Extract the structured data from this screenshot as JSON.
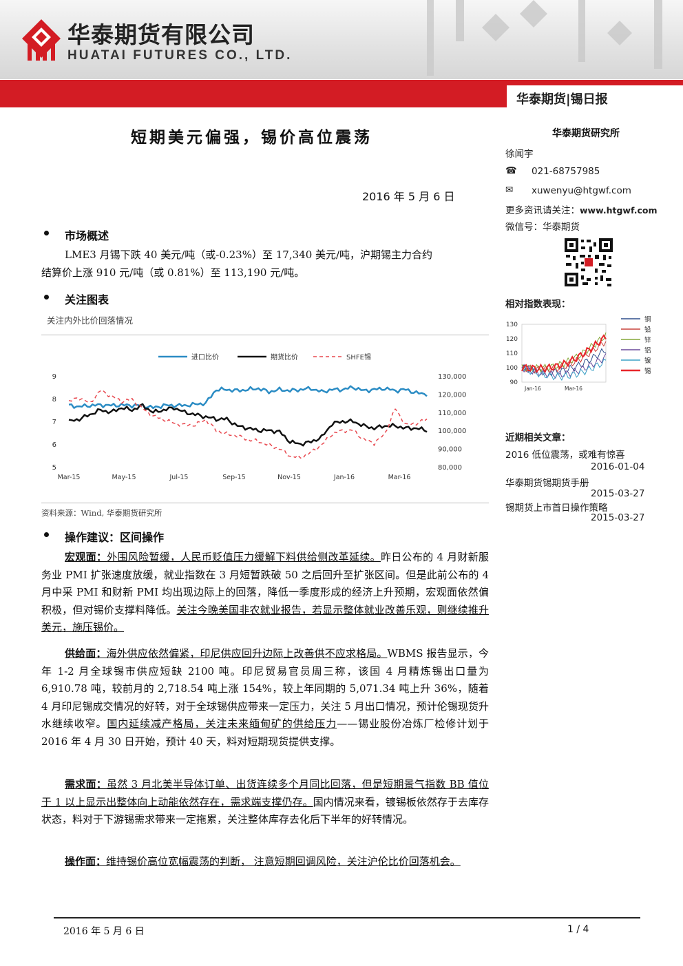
{
  "header": {
    "company_cn": "华泰期货有限公司",
    "company_en": "HUATAI FUTURES CO., LTD.",
    "report_tag": "华泰期货|锡日报",
    "brand_color": "#d31c24"
  },
  "title": "短期美元偏强，锡价高位震荡",
  "date": "2016 年 5 月 6 日",
  "section_market": {
    "heading": "市场概述",
    "line1": "LME3 月锡下跌 40 美元/吨（或-0.23%）至 17,340 美元/吨，沪期锡主力合约",
    "line2": "结算价上涨 910 元/吨（或 0.81%）至 113,190 元/吨。"
  },
  "section_chart": {
    "heading": "关注图表",
    "caption": "关注内外比价回落情况",
    "source": "资料来源：Wind, 华泰期货研究所"
  },
  "chart_data": {
    "type": "line",
    "legend": [
      "进口比价",
      "期货比价",
      "SHFE锡"
    ],
    "x_ticks": [
      "Mar-15",
      "May-15",
      "Jul-15",
      "Sep-15",
      "Nov-15",
      "Jan-16",
      "Mar-16"
    ],
    "y_left_ticks": [
      "9",
      "8",
      "7",
      "6",
      "5"
    ],
    "y_right_ticks": [
      "130,000",
      "120,000",
      "110,000",
      "100,000",
      "90,000",
      "80,000"
    ],
    "ylim_left": [
      5,
      9
    ],
    "ylim_right": [
      80000,
      130000
    ],
    "colors": {
      "import_ratio": "#2b8cc4",
      "futures_ratio": "#111111",
      "shfe": "#e8484f"
    },
    "series": [
      {
        "name": "进口比价",
        "axis": "left",
        "values": [
          7.7,
          7.65,
          7.7,
          7.72,
          7.7,
          7.72,
          7.7,
          7.7,
          7.6,
          7.7,
          7.7,
          7.7,
          7.75,
          7.8,
          8.4,
          8.4,
          8.35,
          8.4,
          8.45,
          8.3,
          8.4,
          8.35,
          8.4,
          8.45,
          8.3,
          8.4,
          8.4,
          8.5,
          8.35,
          8.4,
          8.45,
          8.35,
          8.4,
          8.25,
          8.2
        ]
      },
      {
        "name": "期货比价",
        "axis": "left",
        "values": [
          7.0,
          7.1,
          7.3,
          7.5,
          7.4,
          7.6,
          7.5,
          7.7,
          7.4,
          7.5,
          7.6,
          7.4,
          7.3,
          7.2,
          7.1,
          7.1,
          6.8,
          6.7,
          6.6,
          6.6,
          6.55,
          6.1,
          6.0,
          6.1,
          6.3,
          6.9,
          7.0,
          7.0,
          6.8,
          6.7,
          6.8,
          6.8,
          6.7,
          6.7,
          6.6
        ]
      },
      {
        "name": "SHFE锡",
        "axis": "right",
        "values": [
          116000,
          118000,
          115000,
          122000,
          119000,
          116000,
          117000,
          112000,
          108000,
          106000,
          104000,
          103000,
          103000,
          106000,
          100000,
          98000,
          97000,
          95000,
          94000,
          92000,
          90000,
          86000,
          85000,
          88000,
          92000,
          98000,
          100000,
          100000,
          95000,
          93000,
          98000,
          112000,
          103000,
          104000,
          106000
        ]
      }
    ]
  },
  "section_ops": {
    "heading": "操作建议：区间操作",
    "macro": {
      "label": "宏观面：",
      "underline1": "外围风险暂缓，人民币贬值压力缓解下料供给侧改革延续。",
      "text1": "昨日公布的 4 月财新服务业 PMI 扩张速度放缓，就业指数在 3 月短暂跌破 50 之后回升至扩张区间。但是此前公布的 4 月中采 PMI 和财新 PMI 均出现边际上的回落，降低一季度形成的经济上升预期，宏观面依然偏积极，但对锡价支撑料降低。",
      "underline2": "关注今晚美国非农就业报告，若显示整体就业改善乐观，则继续推升美元，施压锡价。"
    },
    "supply": {
      "label": "供给面：",
      "underline1": "海外供应依然偏紧，印尼供应回升边际上改善供不应求格局。",
      "text1": "WBMS 报告显示，今年 1-2 月全球锡市供应短缺 2100 吨。印尼贸易官员周三称，该国 4 月精炼锡出口量为 6,910.78 吨，较前月的 2,718.54 吨上涨 154%，较上年同期的 5,071.34 吨上升 36%，随着 4 月印尼锡成交情况的好转，对于全球锡供应带来一定压力，关注 5 月出口情况，预计伦锡现货升水继续收窄。",
      "underline2": "国内延续减产格局，关注未来缅甸矿的供给压力",
      "text2": "——锡业股份冶炼厂检修计划于 2016 年 4 月 30 日开始，预计 40 天，料对短期现货提供支撑。"
    },
    "demand": {
      "label": "需求面：",
      "underline1": "虽然 3 月北美半导体订单、出货连续多个月同比回落，但是短期景气指数 BB 值位于 1 以上显示出整体向上动能依然存在，需求端支撑仍存。",
      "text1": "国内情况来看，镀锡板依然存于去库存状态，料对于下游锡需求带来一定拖累，关注整体库存去化后下半年的好转情况。"
    },
    "operation": {
      "label": "操作面：",
      "underline1": "维持锡价高位宽幅震荡的判断， 注意短期回调风险，关注沪伦比价回落机会。"
    }
  },
  "sidebar": {
    "institute": "华泰期货研究所",
    "analyst": "徐闻宇",
    "phone": "021-68757985",
    "email": "xuwenyu@htgwf.com",
    "more_info": "更多资讯请关注：",
    "website": "www.htgwf.com",
    "wechat": "微信号：华泰期货",
    "relative_index_title": "相对指数表现：",
    "mini_chart": {
      "type": "line",
      "y_ticks": [
        "130",
        "120",
        "110",
        "100",
        "90"
      ],
      "x_ticks": [
        "Jan-16",
        "Mar-16"
      ],
      "legend": [
        {
          "name": "铜",
          "color": "#2e4e8c"
        },
        {
          "name": "铅",
          "color": "#c8423b"
        },
        {
          "name": "锌",
          "color": "#86a83a"
        },
        {
          "name": "铝",
          "color": "#6a4a9c"
        },
        {
          "name": "镍",
          "color": "#3aa0c6"
        },
        {
          "name": "锡",
          "color": "#e8262b"
        }
      ]
    },
    "articles_title": "近期相关文章：",
    "articles": [
      {
        "title": "2016 低位震荡，或难有惊喜",
        "date": "2016-01-04"
      },
      {
        "title": "华泰期货锡期货手册",
        "date": "2015-03-27"
      },
      {
        "title": "锡期货上市首日操作策略",
        "date": "2015-03-27"
      }
    ]
  },
  "footer": {
    "date": "2016 年 5 月 6 日",
    "page": "1 / 4"
  }
}
